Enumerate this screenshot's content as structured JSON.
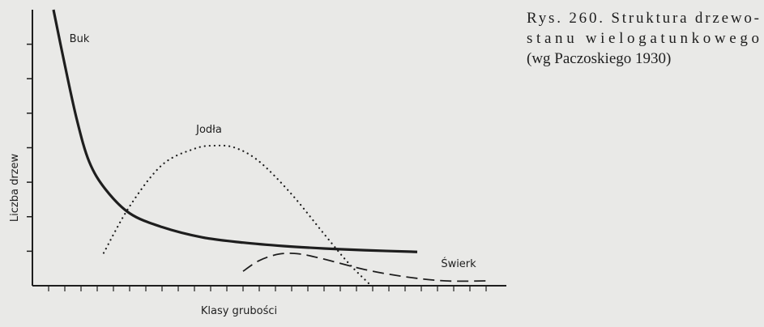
{
  "chart_data": {
    "type": "line",
    "caption": [
      "Rys. 260. Struktura drzewo-",
      "stanu wielogatunkowego",
      "(wg Paczoskiego 1930)"
    ],
    "x_label": "Klasy grubości",
    "y_label": "Liczba drzew",
    "xlim": [
      0,
      29
    ],
    "ylim": [
      0,
      8
    ],
    "xticks": [
      1,
      2,
      3,
      4,
      5,
      6,
      7,
      8,
      9,
      10,
      11,
      12,
      13,
      14,
      15,
      16,
      17,
      18,
      19,
      20,
      21,
      22,
      23,
      24,
      25,
      26,
      27,
      28
    ],
    "yticks": [
      1,
      2,
      3,
      4,
      5,
      6,
      7
    ],
    "color": "#1e1e1e",
    "series": [
      {
        "name": "Buk",
        "style": "solid",
        "x": [
          1.3,
          2,
          2.75,
          3.5,
          4.5,
          6,
          8,
          10.5,
          13,
          15.5,
          18,
          20.5,
          23.75
        ],
        "values": [
          8,
          6.4,
          4.8,
          3.6,
          2.8,
          2.1,
          1.7,
          1.4,
          1.25,
          1.15,
          1.08,
          1.03,
          0.98
        ]
      },
      {
        "name": "Jodła",
        "style": "dotted",
        "x": [
          4.4,
          6,
          8,
          10,
          11.25,
          12.5,
          14,
          16,
          18,
          19.5,
          20.75
        ],
        "values": [
          0.95,
          2.3,
          3.5,
          3.97,
          4.06,
          4,
          3.6,
          2.65,
          1.5,
          0.66,
          0.07
        ]
      },
      {
        "name": "Świerk",
        "style": "dashed",
        "x": [
          13,
          14,
          15.25,
          16.5,
          18,
          20.5,
          23,
          25.5,
          28
        ],
        "values": [
          0.42,
          0.73,
          0.92,
          0.92,
          0.77,
          0.47,
          0.26,
          0.14,
          0.14
        ]
      }
    ]
  }
}
